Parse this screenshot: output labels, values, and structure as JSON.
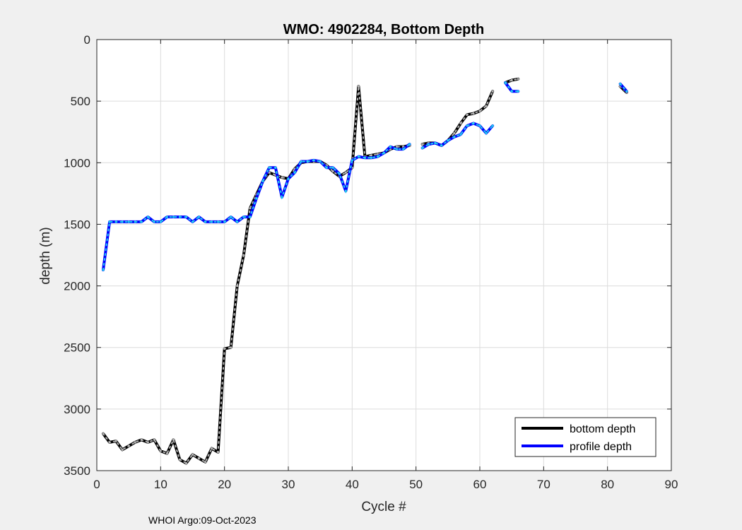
{
  "chart_data": {
    "type": "line",
    "title": "WMO: 4902284, Bottom Depth",
    "xlabel": "Cycle #",
    "ylabel": "depth (m)",
    "xlim": [
      0,
      90
    ],
    "ylim": [
      0,
      3500
    ],
    "y_reversed": true,
    "grid": true,
    "xticks": [
      0,
      10,
      20,
      30,
      40,
      50,
      60,
      70,
      80,
      90
    ],
    "yticks": [
      0,
      500,
      1000,
      1500,
      2000,
      2500,
      3000,
      3500
    ],
    "legend_position": "bottom-right",
    "series": [
      {
        "name": "bottom depth",
        "color": "#000000",
        "segments": [
          [
            [
              1,
              3200
            ],
            [
              2,
              3270
            ],
            [
              3,
              3260
            ],
            [
              4,
              3330
            ],
            [
              5,
              3300
            ],
            [
              6,
              3270
            ],
            [
              7,
              3250
            ],
            [
              8,
              3270
            ],
            [
              9,
              3250
            ],
            [
              10,
              3340
            ],
            [
              11,
              3360
            ],
            [
              12,
              3250
            ],
            [
              13,
              3410
            ],
            [
              14,
              3440
            ],
            [
              15,
              3370
            ],
            [
              16,
              3400
            ],
            [
              17,
              3430
            ],
            [
              18,
              3320
            ],
            [
              19,
              3350
            ],
            [
              20,
              2510
            ],
            [
              21,
              2500
            ],
            [
              22,
              2000
            ],
            [
              23,
              1750
            ],
            [
              24,
              1370
            ],
            [
              25,
              1260
            ],
            [
              26,
              1150
            ],
            [
              27,
              1080
            ],
            [
              28,
              1100
            ],
            [
              29,
              1120
            ],
            [
              30,
              1130
            ],
            [
              31,
              1050
            ],
            [
              32,
              1000
            ],
            [
              33,
              990
            ],
            [
              34,
              990
            ],
            [
              35,
              990
            ],
            [
              36,
              1020
            ],
            [
              37,
              1070
            ],
            [
              38,
              1110
            ],
            [
              39,
              1080
            ],
            [
              40,
              1040
            ],
            [
              41,
              380
            ],
            [
              42,
              950
            ],
            [
              43,
              940
            ],
            [
              44,
              930
            ],
            [
              45,
              920
            ],
            [
              46,
              890
            ],
            [
              47,
              870
            ],
            [
              48,
              870
            ],
            [
              49,
              860
            ]
          ],
          [
            [
              51,
              850
            ],
            [
              52,
              840
            ],
            [
              53,
              840
            ],
            [
              54,
              860
            ],
            [
              55,
              820
            ],
            [
              56,
              760
            ],
            [
              57,
              680
            ],
            [
              58,
              610
            ],
            [
              59,
              600
            ],
            [
              60,
              580
            ],
            [
              61,
              540
            ],
            [
              62,
              420
            ]
          ],
          [
            [
              64,
              350
            ],
            [
              65,
              330
            ],
            [
              66,
              320
            ]
          ],
          [
            [
              82,
              380
            ],
            [
              83,
              430
            ]
          ]
        ]
      },
      {
        "name": "profile depth",
        "color": "#0000ff",
        "segments": [
          [
            [
              1,
              1870
            ],
            [
              2,
              1480
            ],
            [
              3,
              1480
            ],
            [
              4,
              1480
            ],
            [
              5,
              1480
            ],
            [
              6,
              1480
            ],
            [
              7,
              1480
            ],
            [
              8,
              1440
            ],
            [
              9,
              1480
            ],
            [
              10,
              1480
            ],
            [
              11,
              1440
            ],
            [
              12,
              1440
            ],
            [
              13,
              1440
            ],
            [
              14,
              1440
            ],
            [
              15,
              1480
            ],
            [
              16,
              1440
            ],
            [
              17,
              1480
            ],
            [
              18,
              1480
            ],
            [
              19,
              1480
            ],
            [
              20,
              1480
            ],
            [
              21,
              1440
            ],
            [
              22,
              1480
            ],
            [
              23,
              1440
            ],
            [
              24,
              1440
            ],
            [
              25,
              1290
            ],
            [
              26,
              1150
            ],
            [
              27,
              1040
            ],
            [
              28,
              1040
            ],
            [
              29,
              1280
            ],
            [
              30,
              1130
            ],
            [
              31,
              1080
            ],
            [
              32,
              990
            ],
            [
              33,
              990
            ],
            [
              34,
              980
            ],
            [
              35,
              990
            ],
            [
              36,
              1040
            ],
            [
              37,
              1040
            ],
            [
              38,
              1090
            ],
            [
              39,
              1230
            ],
            [
              40,
              980
            ],
            [
              41,
              950
            ],
            [
              42,
              960
            ],
            [
              43,
              960
            ],
            [
              44,
              950
            ],
            [
              45,
              920
            ],
            [
              46,
              870
            ],
            [
              47,
              890
            ],
            [
              48,
              890
            ],
            [
              49,
              850
            ]
          ],
          [
            [
              51,
              880
            ],
            [
              52,
              850
            ],
            [
              53,
              840
            ],
            [
              54,
              860
            ],
            [
              55,
              820
            ],
            [
              56,
              790
            ],
            [
              57,
              770
            ],
            [
              58,
              700
            ],
            [
              59,
              680
            ],
            [
              60,
              700
            ],
            [
              61,
              760
            ],
            [
              62,
              700
            ]
          ],
          [
            [
              64,
              350
            ],
            [
              65,
              420
            ],
            [
              66,
              420
            ]
          ],
          [
            [
              82,
              360
            ],
            [
              83,
              420
            ]
          ]
        ]
      }
    ]
  },
  "footer_text": "WHOI Argo:09-Oct-2023"
}
